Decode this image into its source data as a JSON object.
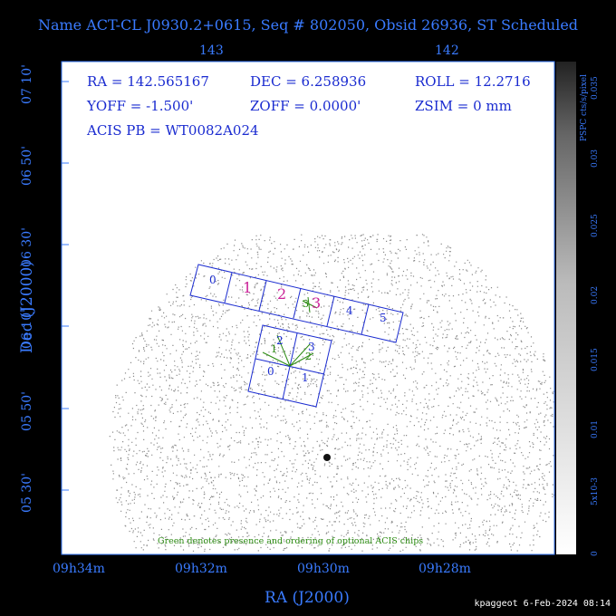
{
  "title": "Name ACT-CL J0930.2+0615, Seq # 802050, Obsid 26936, ST Scheduled",
  "top_ticks": [
    "143",
    "142"
  ],
  "bottom_ticks": [
    "09h34m",
    "09h32m",
    "09h30m",
    "09h28m"
  ],
  "left_ticks": [
    "07 10'",
    "06 50'",
    "06 30'",
    "06 10'",
    "05 50'",
    "05 30'"
  ],
  "xlabel": "RA (J2000)",
  "ylabel": "Dec (J2000)",
  "info": {
    "ra": "RA = 142.565167",
    "dec": "DEC = 6.258936",
    "roll": "ROLL = 12.2716",
    "yoff": "YOFF = -1.500'",
    "zoff": "ZOFF = 0.0000'",
    "zsim": "ZSIM = 0 mm",
    "acis": "ACIS PB = WT0082A024"
  },
  "chips_s": [
    "0",
    "1",
    "2",
    "3",
    "4",
    "5"
  ],
  "chips_i": [
    "0",
    "1",
    "2",
    "3"
  ],
  "optional_labels": [
    "1",
    "2",
    "3",
    "6",
    "2"
  ],
  "note": "Green denotes presence and ordering of optional ACIS chips",
  "colorbar": {
    "label": "PSPC cts/s/pixel",
    "ticks": [
      "0.035",
      "0.03",
      "0.025",
      "0.02",
      "0.015",
      "0.01",
      "5x10-3",
      "0"
    ]
  },
  "footer": "kpaggeot  6-Feb-2024 08:14",
  "colors": {
    "axis": "#3a7bff",
    "chips": "#1a2bd0",
    "optional": "#2a8a10",
    "highlight": "#cc2299"
  }
}
